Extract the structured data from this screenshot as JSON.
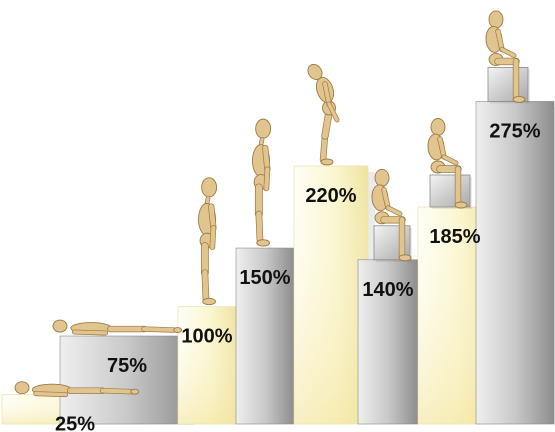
{
  "chart_data": {
    "type": "bar",
    "title": "",
    "xlabel": "",
    "ylabel": "",
    "ylim": [
      0,
      300
    ],
    "grid": false,
    "legend": "none",
    "categories": [
      "",
      "",
      "",
      "",
      "",
      "",
      "",
      ""
    ],
    "values": [
      25,
      75,
      100,
      150,
      220,
      140,
      185,
      275
    ],
    "labels": [
      "25%",
      "75%",
      "100%",
      "150%",
      "220%",
      "140%",
      "185%",
      "275%"
    ],
    "bar_styles": [
      "yellow",
      "gray",
      "yellow",
      "gray",
      "yellow",
      "gray",
      "yellow",
      "gray"
    ],
    "figures": [
      "lying",
      "lying",
      "standing",
      "standing",
      "bending",
      "sitting-on-box",
      "sitting-on-box",
      "sitting-on-box"
    ]
  },
  "colors": {
    "yellow_light": "#fefdf2",
    "yellow_dark": "#efe6a6",
    "gray_light": "#dcdcdc",
    "gray_dark": "#8e8e8e",
    "figure_wood": "#e2c48e",
    "figure_outline": "#9b7a44",
    "box": "#cfcfcf"
  }
}
